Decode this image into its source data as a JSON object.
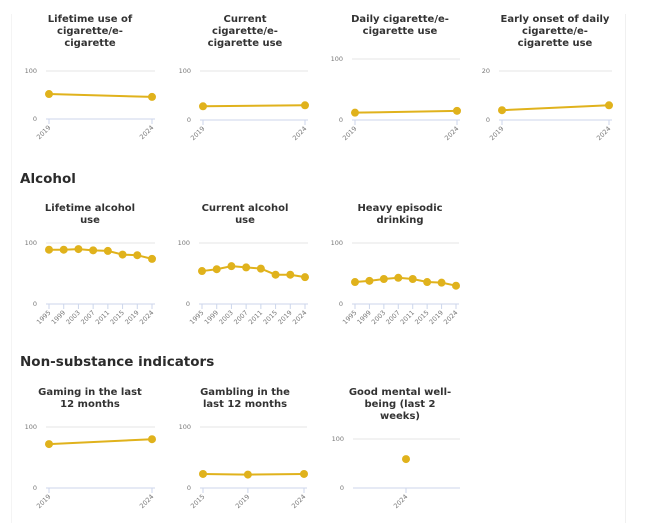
{
  "sections": [
    {
      "title": ""
    },
    {
      "title": "Alcohol"
    },
    {
      "title": "Non-substance indicators"
    }
  ],
  "colors": {
    "series": "#e0b21c",
    "grid": "#e6e6e6",
    "axis": "#ccd6eb"
  },
  "chart_data": [
    {
      "type": "line",
      "title": "Lifetime use of cigarette/e-cigarette",
      "title_lines": [
        "Lifetime use of",
        "cigarette/e-",
        "cigarette"
      ],
      "categories": [
        "2019",
        "2024"
      ],
      "values": [
        52,
        46
      ],
      "ylim": [
        0,
        100
      ],
      "yticks": [
        0,
        100
      ],
      "grid": true
    },
    {
      "type": "line",
      "title": "Current cigarette/e-cigarette use",
      "title_lines": [
        "Current",
        "cigarette/e-",
        "cigarette use"
      ],
      "categories": [
        "2019",
        "2024"
      ],
      "values": [
        28,
        30
      ],
      "ylim": [
        0,
        100
      ],
      "yticks": [
        0,
        100
      ],
      "grid": true
    },
    {
      "type": "line",
      "title": "Daily cigarette/e-cigarette use",
      "title_lines": [
        "Daily cigarette/e-",
        "cigarette use"
      ],
      "categories": [
        "2019",
        "2024"
      ],
      "values": [
        12,
        15
      ],
      "ylim": [
        0,
        100
      ],
      "yticks": [
        0,
        100
      ],
      "grid": true
    },
    {
      "type": "line",
      "title": "Early onset of daily cigarette/e-cigarette use",
      "title_lines": [
        "Early onset of daily",
        "cigarette/e-",
        "cigarette use"
      ],
      "categories": [
        "2019",
        "2024"
      ],
      "values": [
        4,
        6
      ],
      "ylim": [
        0,
        20
      ],
      "yticks": [
        0,
        20
      ],
      "grid": true
    },
    {
      "type": "line",
      "title": "Lifetime alcohol use",
      "title_lines": [
        "Lifetime alcohol",
        "use"
      ],
      "categories": [
        "1995",
        "1999",
        "2003",
        "2007",
        "2011",
        "2015",
        "2019",
        "2024"
      ],
      "values": [
        89,
        89,
        90,
        88,
        87,
        81,
        80,
        74
      ],
      "ylim": [
        0,
        100
      ],
      "yticks": [
        0,
        100
      ],
      "grid": true
    },
    {
      "type": "line",
      "title": "Current alcohol use",
      "title_lines": [
        "Current alcohol",
        "use"
      ],
      "categories": [
        "1995",
        "1999",
        "2003",
        "2007",
        "2011",
        "2015",
        "2019",
        "2024"
      ],
      "values": [
        54,
        57,
        62,
        60,
        58,
        48,
        48,
        44
      ],
      "ylim": [
        0,
        100
      ],
      "yticks": [
        0,
        100
      ],
      "grid": true
    },
    {
      "type": "line",
      "title": "Heavy episodic drinking",
      "title_lines": [
        "Heavy episodic",
        "drinking"
      ],
      "categories": [
        "1995",
        "1999",
        "2003",
        "2007",
        "2011",
        "2015",
        "2019",
        "2024"
      ],
      "values": [
        36,
        38,
        41,
        43,
        41,
        36,
        35,
        30
      ],
      "ylim": [
        0,
        100
      ],
      "yticks": [
        0,
        100
      ],
      "grid": true
    },
    {
      "type": "line",
      "title": "Gaming in the last 12 months",
      "title_lines": [
        "Gaming in the last",
        "12 months"
      ],
      "categories": [
        "2019",
        "2024"
      ],
      "values": [
        72,
        80
      ],
      "ylim": [
        0,
        100
      ],
      "yticks": [
        0,
        100
      ],
      "grid": true
    },
    {
      "type": "line",
      "title": "Gambling in the last 12 months",
      "title_lines": [
        "Gambling in the",
        "last 12 months"
      ],
      "categories": [
        "2015",
        "2019",
        "2024"
      ],
      "values": [
        23,
        22,
        23
      ],
      "ylim": [
        0,
        100
      ],
      "yticks": [
        0,
        100
      ],
      "grid": true
    },
    {
      "type": "scatter",
      "title": "Good mental well-being (last 2 weeks)",
      "title_lines": [
        "Good mental well-",
        "being (last 2",
        "weeks)"
      ],
      "categories": [
        "2024"
      ],
      "values": [
        59
      ],
      "ylim": [
        0,
        100
      ],
      "yticks": [
        0,
        100
      ],
      "grid": true
    }
  ]
}
